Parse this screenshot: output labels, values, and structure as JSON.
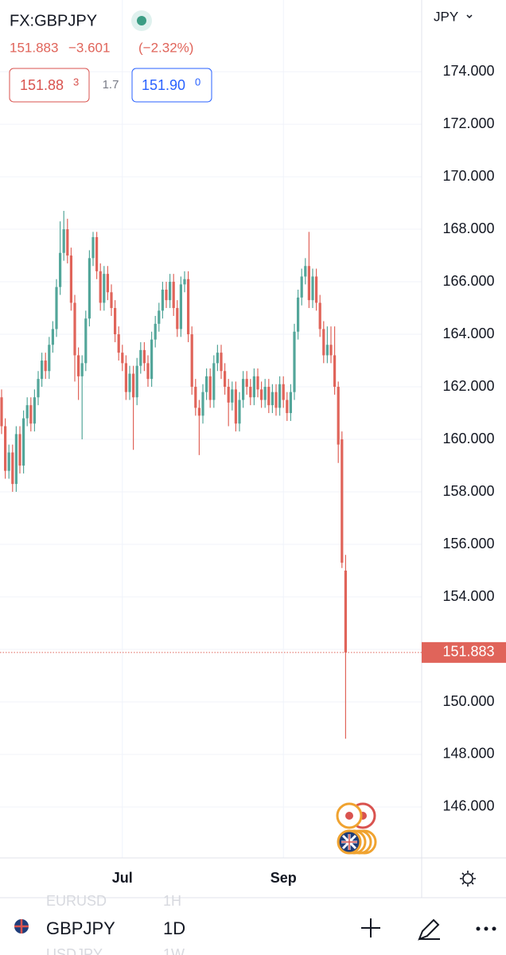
{
  "header": {
    "symbol": "FX:GBPJPY",
    "change": "−3.601",
    "change_pct": "(−2.32%)",
    "bid": "151.88",
    "bid_small": "3",
    "spread": "1.7",
    "ask": "151.90",
    "ask_small": "0"
  },
  "toolbar": {
    "symbol": "GBPJPY",
    "interval": "1D",
    "ghost_symbol_top": "EURUSD",
    "ghost_interval_top": "1H",
    "ghost_symbol_bottom": "USDJPY",
    "ghost_interval_bottom": "1W"
  },
  "chart_data": {
    "type": "candlestick",
    "currency": "JPY",
    "up_color": "#53a69a",
    "down_color": "#e0645a",
    "grid": true,
    "ylim": [
      144.06,
      176.73
    ],
    "yticks": [
      {
        "value": 146,
        "label": "146.000"
      },
      {
        "value": 148,
        "label": "148.000"
      },
      {
        "value": 150,
        "label": "150.000"
      },
      {
        "value": 152,
        "label": "152.000"
      },
      {
        "value": 154,
        "label": "154.000"
      },
      {
        "value": 156,
        "label": "156.000"
      },
      {
        "value": 158,
        "label": "158.000"
      },
      {
        "value": 160,
        "label": "160.000"
      },
      {
        "value": 162,
        "label": "162.000"
      },
      {
        "value": 164,
        "label": "164.000"
      },
      {
        "value": 166,
        "label": "166.000"
      },
      {
        "value": 168,
        "label": "168.000"
      },
      {
        "value": 170,
        "label": "170.000"
      },
      {
        "value": 172,
        "label": "172.000"
      },
      {
        "value": 174,
        "label": "174.000"
      }
    ],
    "categories": [
      null,
      null,
      null,
      null,
      null,
      null,
      null,
      null,
      null,
      null,
      null,
      null,
      null,
      null,
      null,
      null,
      null,
      null,
      null,
      null,
      null,
      null,
      null,
      null,
      null,
      null,
      null,
      null,
      null,
      null,
      null,
      null,
      null,
      "Jul",
      null,
      null,
      null,
      null,
      null,
      null,
      null,
      null,
      null,
      null,
      null,
      null,
      null,
      null,
      null,
      null,
      null,
      null,
      null,
      null,
      null,
      null,
      null,
      null,
      null,
      null,
      null,
      null,
      null,
      null,
      null,
      null,
      null,
      null,
      null,
      null,
      null,
      null,
      null,
      null,
      null,
      null,
      null,
      "Sep",
      null,
      null,
      null,
      null,
      null,
      null,
      null,
      null,
      null,
      null,
      null,
      null,
      null,
      null,
      null,
      null,
      null
    ],
    "open": [
      161.6,
      160.5,
      158.8,
      159.5,
      158.3,
      160.2,
      159.0,
      160.8,
      161.3,
      160.6,
      161.6,
      162.3,
      163.0,
      162.6,
      163.6,
      164.2,
      165.8,
      167.1,
      168.0,
      167.0,
      165.2,
      163.2,
      162.4,
      162.9,
      164.6,
      166.9,
      167.7,
      166.4,
      165.2,
      166.3,
      165.6,
      165.0,
      164.0,
      163.3,
      162.9,
      161.8,
      162.5,
      161.6,
      162.8,
      163.4,
      162.9,
      162.3,
      163.8,
      164.4,
      164.9,
      165.7,
      165.3,
      166.0,
      165.0,
      164.2,
      165.9,
      166.1,
      164.0,
      162.0,
      161.2,
      160.9,
      161.8,
      162.4,
      161.5,
      162.9,
      163.3,
      162.6,
      162.0,
      161.4,
      161.9,
      160.6,
      161.5,
      162.3,
      162.0,
      161.6,
      162.4,
      161.9,
      161.5,
      162.0,
      161.3,
      161.8,
      161.2,
      162.1,
      161.5,
      161.0,
      161.8,
      164.1,
      165.4,
      166.2,
      166.6,
      165.3,
      166.2,
      165.2,
      164.2,
      163.2,
      163.6,
      163.2,
      162.0,
      160.0,
      155.0
    ],
    "high": [
      161.9,
      160.8,
      159.8,
      159.8,
      160.5,
      160.5,
      161.1,
      161.6,
      161.6,
      161.9,
      162.6,
      163.3,
      163.3,
      163.9,
      164.5,
      166.1,
      168.3,
      168.7,
      168.4,
      167.3,
      165.5,
      163.5,
      163.2,
      164.9,
      167.2,
      167.9,
      167.9,
      166.7,
      166.6,
      166.6,
      165.9,
      165.3,
      164.3,
      163.6,
      163.2,
      162.8,
      162.8,
      163.1,
      163.7,
      163.7,
      163.2,
      164.1,
      164.7,
      165.2,
      166.0,
      166.0,
      166.3,
      166.3,
      165.3,
      166.2,
      166.4,
      166.4,
      164.3,
      162.3,
      161.5,
      162.1,
      162.7,
      162.7,
      163.2,
      163.6,
      163.6,
      162.9,
      162.3,
      162.2,
      162.2,
      161.8,
      162.6,
      162.6,
      162.3,
      162.7,
      162.7,
      162.2,
      162.3,
      162.3,
      162.1,
      162.1,
      162.4,
      162.4,
      161.8,
      162.1,
      164.4,
      165.7,
      166.5,
      166.9,
      167.9,
      166.5,
      166.5,
      165.5,
      164.5,
      164.3,
      164.3,
      164.3,
      162.2,
      160.3,
      155.6
    ],
    "low": [
      160.2,
      158.5,
      158.5,
      158.0,
      158.0,
      158.7,
      158.7,
      160.5,
      160.3,
      160.3,
      161.3,
      162.0,
      162.3,
      162.3,
      163.3,
      163.9,
      165.5,
      166.8,
      166.7,
      164.9,
      162.2,
      161.5,
      160.0,
      162.6,
      164.3,
      166.6,
      166.1,
      164.9,
      164.9,
      165.3,
      164.7,
      163.7,
      163.0,
      162.6,
      161.5,
      161.5,
      159.6,
      161.3,
      162.5,
      162.6,
      162.0,
      162.0,
      163.5,
      164.1,
      164.6,
      165.0,
      165.0,
      164.7,
      163.9,
      163.9,
      165.6,
      163.7,
      161.7,
      160.9,
      159.4,
      160.6,
      161.5,
      161.2,
      161.2,
      162.6,
      162.3,
      161.7,
      160.5,
      161.1,
      160.3,
      160.3,
      161.2,
      161.7,
      161.3,
      161.3,
      161.6,
      161.2,
      161.2,
      161.0,
      161.0,
      160.9,
      160.9,
      161.2,
      160.7,
      160.7,
      161.5,
      163.8,
      165.1,
      165.9,
      165.0,
      165.0,
      164.9,
      163.9,
      162.9,
      162.9,
      162.9,
      161.7,
      159.1,
      155.1,
      148.6
    ],
    "close": [
      160.5,
      158.8,
      159.5,
      158.3,
      160.2,
      159.0,
      160.8,
      161.3,
      160.6,
      161.6,
      162.3,
      163.0,
      162.6,
      163.6,
      164.2,
      165.8,
      167.1,
      168.0,
      167.0,
      165.2,
      163.2,
      162.4,
      162.9,
      164.6,
      166.9,
      167.7,
      166.4,
      165.2,
      166.3,
      165.6,
      165.0,
      164.0,
      163.3,
      162.9,
      161.8,
      162.5,
      161.6,
      162.8,
      163.4,
      162.9,
      162.3,
      163.8,
      164.4,
      164.9,
      165.7,
      165.3,
      166.0,
      165.0,
      164.2,
      165.9,
      166.1,
      164.0,
      162.0,
      161.2,
      160.9,
      161.8,
      162.4,
      161.5,
      162.9,
      163.3,
      162.6,
      162.0,
      161.4,
      161.9,
      160.6,
      161.5,
      162.3,
      162.0,
      161.6,
      162.4,
      161.9,
      161.5,
      162.0,
      161.3,
      161.8,
      161.2,
      162.1,
      161.5,
      161.0,
      161.8,
      164.1,
      165.4,
      166.2,
      166.6,
      165.3,
      166.2,
      165.2,
      164.2,
      163.2,
      163.6,
      163.2,
      162.0,
      159.8,
      155.3,
      151.883
    ]
  }
}
